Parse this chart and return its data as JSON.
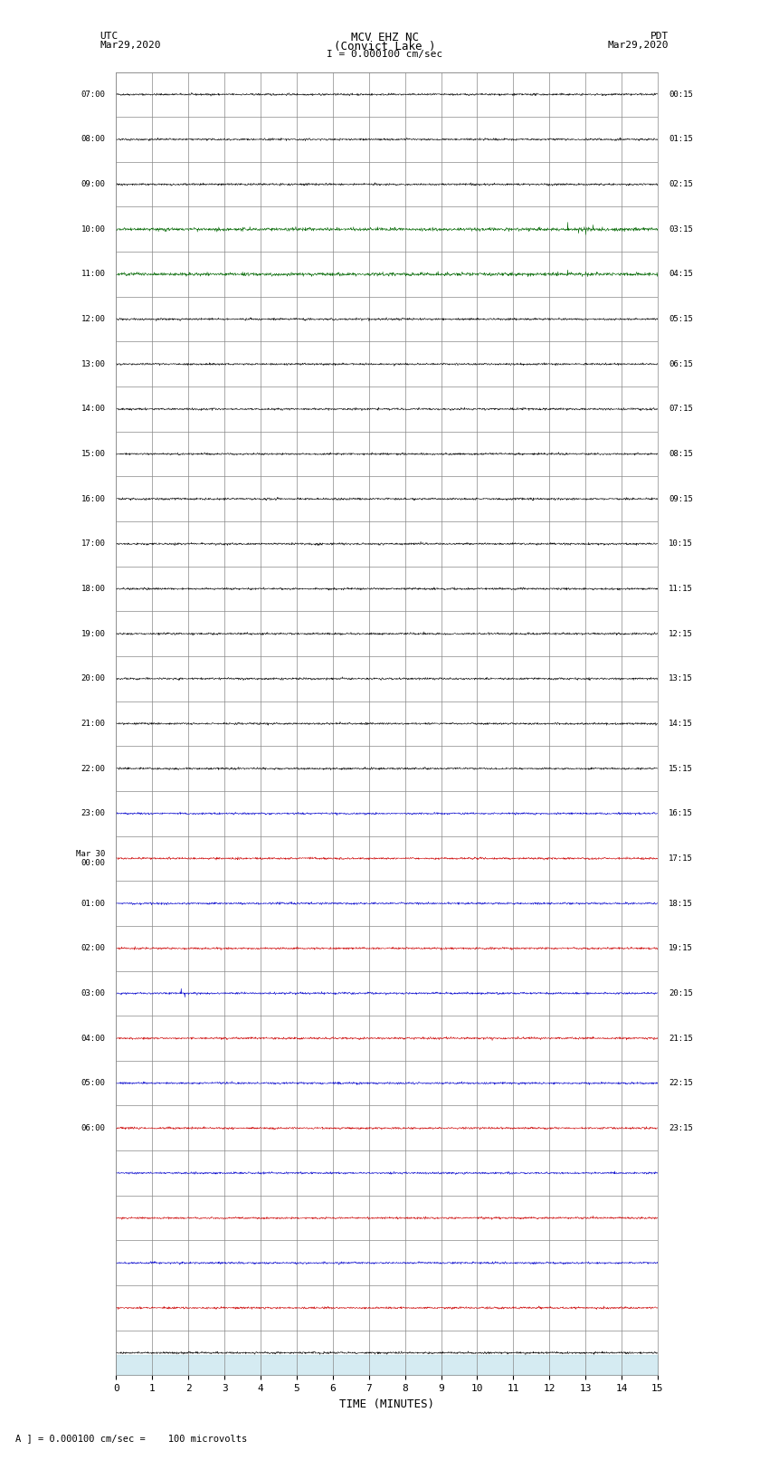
{
  "title_line1": "MCV EHZ NC",
  "title_line2": "(Convict Lake )",
  "title_line3": "I = 0.000100 cm/sec",
  "label_left_top": "UTC",
  "label_left_date": "Mar29,2020",
  "label_right_top": "PDT",
  "label_right_date": "Mar29,2020",
  "xlabel": "TIME (MINUTES)",
  "footer": "A ] = 0.000100 cm/sec =    100 microvolts",
  "bg_color": "#ffffff",
  "grid_color": "#888888",
  "trace_color_normal": "#000000",
  "n_rows": 29,
  "utc_labels": [
    "07:00",
    "08:00",
    "09:00",
    "10:00",
    "11:00",
    "12:00",
    "13:00",
    "14:00",
    "15:00",
    "16:00",
    "17:00",
    "18:00",
    "19:00",
    "20:00",
    "21:00",
    "22:00",
    "23:00",
    "Mar 30\n00:00",
    "01:00",
    "02:00",
    "03:00",
    "04:00",
    "05:00",
    "06:00",
    "",
    "",
    "",
    "",
    "",
    ""
  ],
  "pdt_labels": [
    "00:15",
    "01:15",
    "02:15",
    "03:15",
    "04:15",
    "05:15",
    "06:15",
    "07:15",
    "08:15",
    "09:15",
    "10:15",
    "11:15",
    "12:15",
    "13:15",
    "14:15",
    "15:15",
    "16:15",
    "17:15",
    "18:15",
    "19:15",
    "20:15",
    "21:15",
    "22:15",
    "23:15",
    "",
    "",
    "",
    "",
    "",
    ""
  ],
  "xmin": 0,
  "xmax": 15,
  "xticks": [
    0,
    1,
    2,
    3,
    4,
    5,
    6,
    7,
    8,
    9,
    10,
    11,
    12,
    13,
    14,
    15
  ],
  "noise_seed": 42,
  "bottom_bar_color": "#add8e6"
}
